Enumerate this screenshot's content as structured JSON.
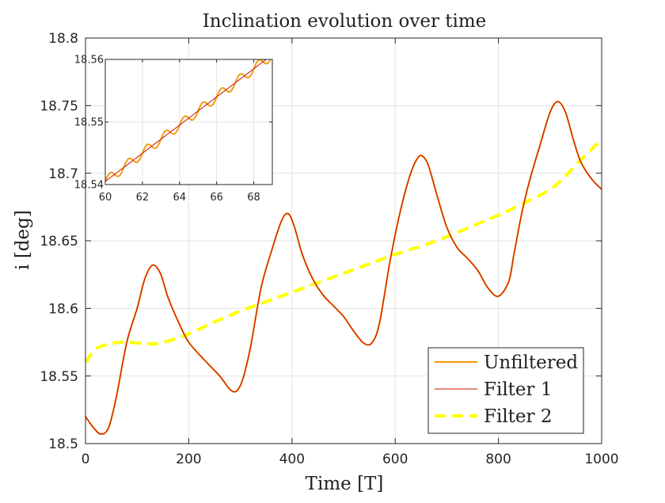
{
  "chart_data": [
    {
      "type": "line",
      "title": "Inclination evolution over time",
      "xlabel": "Time [T]",
      "ylabel": "i [deg]",
      "xlim": [
        0,
        1000
      ],
      "ylim": [
        18.5,
        18.8
      ],
      "xticks": [
        0,
        200,
        400,
        600,
        800,
        1000
      ],
      "yticks": [
        18.5,
        18.55,
        18.6,
        18.65,
        18.7,
        18.75,
        18.8
      ],
      "grid": true,
      "legend_position": "bottom-right",
      "legend": [
        "Unfiltered",
        "Filter 1",
        "Filter 2"
      ],
      "series": [
        {
          "name": "Unfiltered",
          "color": "#f39c12",
          "style": "solid",
          "x": [
            0,
            15,
            30,
            45,
            60,
            80,
            100,
            115,
            130,
            145,
            160,
            180,
            200,
            230,
            260,
            280,
            293,
            305,
            320,
            340,
            360,
            380,
            393,
            405,
            420,
            440,
            460,
            480,
            500,
            520,
            540,
            556,
            570,
            590,
            610,
            630,
            645,
            655,
            665,
            680,
            700,
            720,
            740,
            760,
            780,
            800,
            820,
            830,
            845,
            860,
            880,
            900,
            915,
            930,
            945,
            960,
            980,
            1000
          ],
          "y": [
            18.52,
            18.512,
            18.507,
            18.512,
            18.535,
            18.575,
            18.6,
            18.622,
            18.632,
            18.626,
            18.608,
            18.59,
            18.575,
            18.562,
            18.55,
            18.54,
            18.539,
            18.548,
            18.572,
            18.615,
            18.642,
            18.665,
            18.67,
            18.66,
            18.64,
            18.622,
            18.61,
            18.602,
            18.594,
            18.583,
            18.574,
            18.575,
            18.59,
            18.635,
            18.672,
            18.7,
            18.712,
            18.712,
            18.705,
            18.685,
            18.66,
            18.645,
            18.637,
            18.628,
            18.615,
            18.609,
            18.62,
            18.64,
            18.67,
            18.694,
            18.72,
            18.745,
            18.753,
            18.745,
            18.725,
            18.708,
            18.696,
            18.688
          ]
        },
        {
          "name": "Filter 1",
          "color": "#cc1100",
          "style": "solid",
          "x": [
            0,
            15,
            30,
            45,
            60,
            80,
            100,
            115,
            130,
            145,
            160,
            180,
            200,
            230,
            260,
            280,
            293,
            305,
            320,
            340,
            360,
            380,
            393,
            405,
            420,
            440,
            460,
            480,
            500,
            520,
            540,
            556,
            570,
            590,
            610,
            630,
            645,
            655,
            665,
            680,
            700,
            720,
            740,
            760,
            780,
            800,
            820,
            830,
            845,
            860,
            880,
            900,
            915,
            930,
            945,
            960,
            980,
            1000
          ],
          "y": [
            18.52,
            18.512,
            18.507,
            18.512,
            18.535,
            18.575,
            18.6,
            18.622,
            18.632,
            18.626,
            18.608,
            18.59,
            18.575,
            18.562,
            18.55,
            18.54,
            18.539,
            18.548,
            18.572,
            18.615,
            18.642,
            18.665,
            18.67,
            18.66,
            18.64,
            18.622,
            18.61,
            18.602,
            18.594,
            18.583,
            18.574,
            18.575,
            18.59,
            18.635,
            18.672,
            18.7,
            18.712,
            18.712,
            18.705,
            18.685,
            18.66,
            18.645,
            18.637,
            18.628,
            18.615,
            18.609,
            18.62,
            18.64,
            18.67,
            18.694,
            18.72,
            18.745,
            18.753,
            18.745,
            18.725,
            18.708,
            18.696,
            18.688
          ]
        },
        {
          "name": "Filter 2",
          "color": "#ffff00",
          "style": "dashed",
          "x": [
            0,
            20,
            50,
            80,
            110,
            140,
            170,
            200,
            250,
            300,
            350,
            400,
            450,
            500,
            550,
            600,
            650,
            700,
            750,
            800,
            850,
            900,
            930,
            960,
            1000
          ],
          "y": [
            18.56,
            18.57,
            18.574,
            18.575,
            18.574,
            18.574,
            18.577,
            18.581,
            18.59,
            18.598,
            18.605,
            18.612,
            18.619,
            18.626,
            18.633,
            18.64,
            18.646,
            18.653,
            18.661,
            18.669,
            18.678,
            18.688,
            18.698,
            18.71,
            18.725
          ]
        }
      ]
    },
    {
      "type": "line",
      "title": "",
      "xlim": [
        60,
        69
      ],
      "ylim": [
        18.54,
        18.56
      ],
      "xticks": [
        60,
        62,
        64,
        66,
        68
      ],
      "yticks": [
        18.54,
        18.55,
        18.56
      ],
      "grid": true,
      "inset": true,
      "series": [
        {
          "name": "Unfiltered",
          "color": "#f39c12",
          "style": "solid",
          "function": "linear_plus_sine",
          "x0": 60,
          "y0": 18.5405,
          "slope": 0.00225,
          "amp": 0.0008,
          "period": 1.0
        },
        {
          "name": "Filter 1",
          "color": "#cc1100",
          "style": "solid",
          "function": "linear",
          "x0": 60,
          "y0": 18.5405,
          "slope": 0.00225
        }
      ]
    }
  ]
}
